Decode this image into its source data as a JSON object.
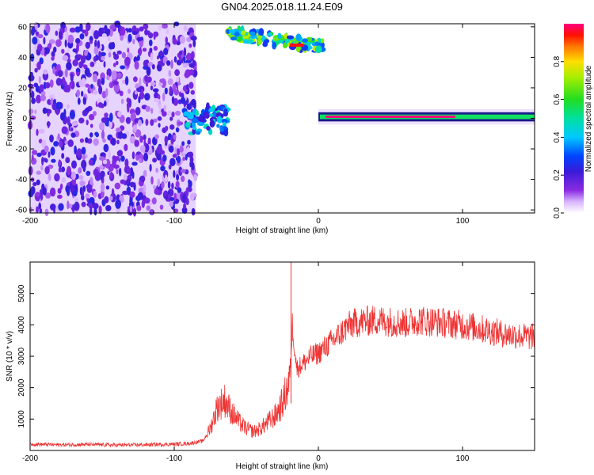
{
  "title": "GN04.2025.018.11.24.E09",
  "chart_data": [
    {
      "type": "heatmap",
      "xlabel": "Height of straight line (km)",
      "ylabel": "Frequency (Hz)",
      "xlim": [
        -200,
        150
      ],
      "ylim": [
        -62,
        62
      ],
      "xticks": [
        -200,
        -100,
        0,
        100
      ],
      "yticks": [
        -60,
        -40,
        -20,
        0,
        20,
        40,
        60
      ],
      "colorbar": {
        "label": "Normalized spectral amplitude",
        "range": [
          0,
          1
        ],
        "ticks": [
          0.0,
          0.2,
          0.4,
          0.6,
          0.8
        ]
      },
      "regions": [
        {
          "name": "noise",
          "x": [
            -200,
            -85
          ],
          "y": [
            -62,
            62
          ],
          "amplitude": 0.15
        },
        {
          "name": "blob",
          "x": [
            -93,
            -63
          ],
          "y": [
            -10,
            8
          ],
          "amplitude": 0.35
        },
        {
          "name": "upper-band",
          "x": [
            -63,
            3
          ],
          "y": [
            38,
            62
          ],
          "amplitude": 0.5
        },
        {
          "name": "zero-band",
          "x": [
            0,
            150
          ],
          "y": [
            -2,
            4
          ],
          "amplitude": 1.0
        }
      ]
    },
    {
      "type": "line",
      "xlabel": "Height of straight line (km)",
      "ylabel": "SNR (10 * v/v)",
      "xlim": [
        -200,
        150
      ],
      "ylim": [
        0,
        6000
      ],
      "xticks": [
        -200,
        -100,
        0,
        100
      ],
      "yticks": [
        1000,
        2000,
        3000,
        4000,
        5000
      ],
      "color": "#ee3333",
      "x": [
        -200,
        -180,
        -160,
        -140,
        -120,
        -100,
        -90,
        -80,
        -75,
        -70,
        -65,
        -60,
        -55,
        -50,
        -45,
        -40,
        -35,
        -30,
        -25,
        -20,
        -18,
        -15,
        -10,
        -5,
        0,
        5,
        10,
        15,
        20,
        25,
        30,
        40,
        50,
        60,
        70,
        80,
        90,
        100,
        110,
        120,
        130,
        140,
        150
      ],
      "y": [
        200,
        180,
        190,
        170,
        180,
        200,
        220,
        300,
        700,
        1400,
        1600,
        1200,
        900,
        700,
        600,
        700,
        900,
        1100,
        1500,
        2200,
        4000,
        2600,
        2800,
        3000,
        3100,
        3300,
        3500,
        3700,
        3950,
        4050,
        4100,
        4150,
        4100,
        4050,
        4150,
        4100,
        4050,
        4000,
        3900,
        3800,
        3700,
        3650,
        3600
      ],
      "spike": {
        "x": -19,
        "y": 6000
      }
    }
  ]
}
